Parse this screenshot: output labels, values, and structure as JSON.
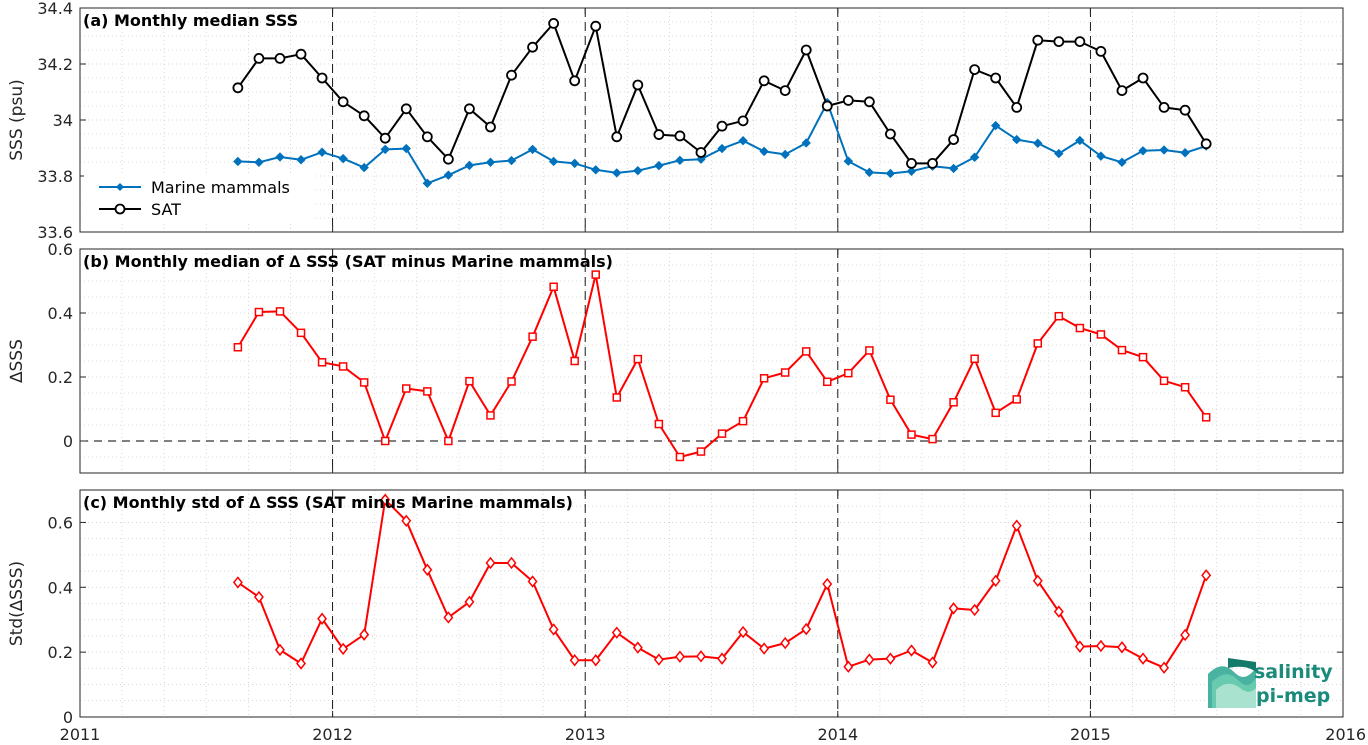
{
  "colors": {
    "marine": "#0072BD",
    "sat": "#000000",
    "delta": "#FF0000",
    "grid": "#cfcfcf",
    "logo": "#1a8a7a"
  },
  "x_tick_labels": [
    "2011",
    "2012",
    "2013",
    "2014",
    "2015",
    "2016"
  ],
  "logo": {
    "line1": "salinity",
    "line2": "pi-mep"
  },
  "chart_data": [
    {
      "type": "line",
      "title": "(a) Monthly median SSS",
      "xlabel": "",
      "ylabel": "SSS (psu)",
      "xlim": [
        2011,
        2016
      ],
      "ylim": [
        33.6,
        34.4
      ],
      "yticks": [
        33.6,
        33.8,
        34,
        34.2,
        34.4
      ],
      "ytick_labels": [
        "33.6",
        "33.8",
        "34",
        "34.2",
        "34.4"
      ],
      "legend_position": "lower-left",
      "grid": true,
      "x": [
        "2011-08",
        "2011-09",
        "2011-10",
        "2011-11",
        "2011-12",
        "2012-01",
        "2012-02",
        "2012-03",
        "2012-04",
        "2012-05",
        "2012-06",
        "2012-07",
        "2012-08",
        "2012-09",
        "2012-10",
        "2012-11",
        "2012-12",
        "2013-01",
        "2013-02",
        "2013-03",
        "2013-04",
        "2013-05",
        "2013-06",
        "2013-07",
        "2013-08",
        "2013-09",
        "2013-10",
        "2013-11",
        "2013-12",
        "2014-01",
        "2014-02",
        "2014-03",
        "2014-04",
        "2014-05",
        "2014-06",
        "2014-07",
        "2014-08",
        "2014-09",
        "2014-10",
        "2014-11",
        "2014-12",
        "2015-01",
        "2015-02",
        "2015-03",
        "2015-04",
        "2015-05",
        "2015-06"
      ],
      "series": [
        {
          "name": "Marine mammals",
          "marker": "filled-diamond",
          "values": [
            33.852,
            33.849,
            33.868,
            33.858,
            33.885,
            33.862,
            33.83,
            33.895,
            33.898,
            33.774,
            33.803,
            33.838,
            33.849,
            33.855,
            33.895,
            33.852,
            33.845,
            33.822,
            33.811,
            33.819,
            33.837,
            33.856,
            33.86,
            33.898,
            33.926,
            33.888,
            33.877,
            33.918,
            34.062,
            33.853,
            33.813,
            33.809,
            33.817,
            33.835,
            33.827,
            33.867,
            33.98,
            33.93,
            33.917,
            33.88,
            33.927,
            33.871,
            33.849,
            33.89,
            33.893,
            33.883,
            33.907
          ]
        },
        {
          "name": "SAT",
          "marker": "open-circle",
          "values": [
            34.115,
            34.22,
            34.22,
            34.235,
            34.15,
            34.065,
            34.015,
            33.935,
            34.04,
            33.94,
            33.86,
            34.04,
            33.975,
            34.16,
            34.26,
            34.345,
            34.14,
            34.335,
            33.94,
            34.125,
            33.948,
            33.943,
            33.884,
            33.978,
            33.997,
            34.14,
            34.105,
            34.25,
            34.05,
            34.07,
            34.065,
            33.95,
            33.845,
            33.845,
            33.93,
            34.18,
            34.15,
            34.045,
            34.285,
            34.28,
            34.28,
            34.245,
            34.105,
            34.15,
            34.045,
            34.035,
            33.915
          ]
        }
      ]
    },
    {
      "type": "line",
      "title": "(b) Monthly median of ∆ SSS (SAT minus Marine mammals)",
      "xlabel": "",
      "ylabel": "∆SSS",
      "xlim": [
        2011,
        2016
      ],
      "ylim": [
        -0.1,
        0.6
      ],
      "yticks": [
        0,
        0.2,
        0.4,
        0.6
      ],
      "ytick_labels": [
        "0",
        "0.2",
        "0.4",
        "0.6"
      ],
      "zero_line": true,
      "grid": true,
      "x": [
        "2011-08",
        "2011-09",
        "2011-10",
        "2011-11",
        "2011-12",
        "2012-01",
        "2012-02",
        "2012-03",
        "2012-04",
        "2012-05",
        "2012-06",
        "2012-07",
        "2012-08",
        "2012-09",
        "2012-10",
        "2012-11",
        "2012-12",
        "2013-01",
        "2013-02",
        "2013-03",
        "2013-04",
        "2013-05",
        "2013-06",
        "2013-07",
        "2013-08",
        "2013-09",
        "2013-10",
        "2013-11",
        "2013-12",
        "2014-01",
        "2014-02",
        "2014-03",
        "2014-04",
        "2014-05",
        "2014-06",
        "2014-07",
        "2014-08",
        "2014-09",
        "2014-10",
        "2014-11",
        "2014-12",
        "2015-01",
        "2015-02",
        "2015-03",
        "2015-04",
        "2015-05",
        "2015-06"
      ],
      "series": [
        {
          "name": "",
          "marker": "open-square",
          "values": [
            0.293,
            0.403,
            0.405,
            0.338,
            0.246,
            0.233,
            0.183,
            0.0,
            0.164,
            0.155,
            0.0,
            0.187,
            0.08,
            0.186,
            0.326,
            0.482,
            0.25,
            0.52,
            0.136,
            0.256,
            0.053,
            -0.05,
            -0.033,
            0.023,
            0.062,
            0.196,
            0.214,
            0.28,
            0.185,
            0.212,
            0.283,
            0.129,
            0.02,
            0.006,
            0.121,
            0.257,
            0.088,
            0.13,
            0.305,
            0.39,
            0.353,
            0.333,
            0.284,
            0.262,
            0.188,
            0.168,
            0.074
          ]
        }
      ]
    },
    {
      "type": "line",
      "title": "(c) Monthly std of ∆ SSS (SAT minus Marine mammals)",
      "xlabel": "",
      "ylabel": "Std(∆SSS)",
      "xlim": [
        2011,
        2016
      ],
      "ylim": [
        0,
        0.7
      ],
      "yticks": [
        0,
        0.2,
        0.4,
        0.6
      ],
      "ytick_labels": [
        "0",
        "0.2",
        "0.4",
        "0.6"
      ],
      "grid": true,
      "x": [
        "2011-08",
        "2011-09",
        "2011-10",
        "2011-11",
        "2011-12",
        "2012-01",
        "2012-02",
        "2012-03",
        "2012-04",
        "2012-05",
        "2012-06",
        "2012-07",
        "2012-08",
        "2012-09",
        "2012-10",
        "2012-11",
        "2012-12",
        "2013-01",
        "2013-02",
        "2013-03",
        "2013-04",
        "2013-05",
        "2013-06",
        "2013-07",
        "2013-08",
        "2013-09",
        "2013-10",
        "2013-11",
        "2013-12",
        "2014-01",
        "2014-02",
        "2014-03",
        "2014-04",
        "2014-05",
        "2014-06",
        "2014-07",
        "2014-08",
        "2014-09",
        "2014-10",
        "2014-11",
        "2014-12",
        "2015-01",
        "2015-02",
        "2015-03",
        "2015-04",
        "2015-05",
        "2015-06"
      ],
      "series": [
        {
          "name": "",
          "marker": "open-diamond",
          "values": [
            0.415,
            0.37,
            0.207,
            0.165,
            0.303,
            0.21,
            0.254,
            0.67,
            0.605,
            0.454,
            0.307,
            0.355,
            0.475,
            0.475,
            0.418,
            0.27,
            0.175,
            0.175,
            0.26,
            0.214,
            0.177,
            0.186,
            0.187,
            0.18,
            0.262,
            0.211,
            0.228,
            0.271,
            0.41,
            0.155,
            0.177,
            0.18,
            0.205,
            0.168,
            0.335,
            0.33,
            0.42,
            0.59,
            0.42,
            0.325,
            0.217,
            0.219,
            0.215,
            0.18,
            0.152,
            0.253,
            0.437
          ]
        }
      ]
    }
  ]
}
